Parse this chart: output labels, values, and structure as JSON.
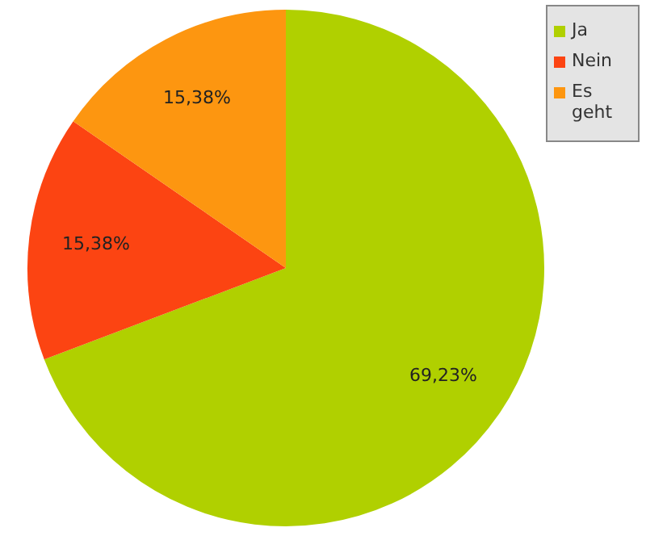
{
  "chart_data": {
    "type": "pie",
    "categories": [
      "Ja",
      "Nein",
      "Es geht"
    ],
    "values": [
      69.23,
      15.38,
      15.38
    ],
    "colors": [
      "#b0d000",
      "#fc4412",
      "#fd9610"
    ],
    "value_labels": [
      "69,23%",
      "15,38%",
      "15,38%"
    ],
    "legend": "top right"
  }
}
